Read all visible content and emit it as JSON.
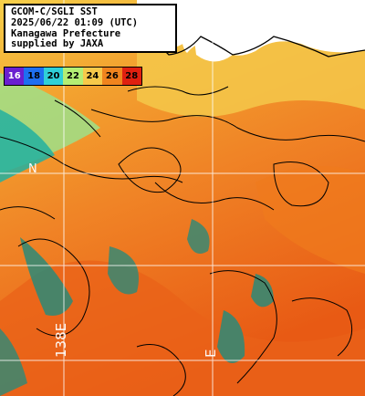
{
  "title": {
    "line1": "GCOM-C/SGLI SST",
    "line2": "2025/06/22 01:09 (UTC)",
    "line3": "Kanagawa Prefecture",
    "line4": "supplied by JAXA"
  },
  "legend": {
    "ticks": [
      "16",
      "18",
      "20",
      "22",
      "24",
      "26",
      "28"
    ],
    "colors": [
      "#6a1fd0",
      "#1e6ff0",
      "#2fd0d8",
      "#b4ee74",
      "#f7c94a",
      "#f0841e",
      "#e02010"
    ]
  },
  "grid": {
    "lat_label": "N",
    "lon_labels": [
      "138E",
      "E"
    ]
  },
  "colors": {
    "land": "#ffffff",
    "sea_warm": "#f07a1c",
    "sea_cool": "#f4c13e",
    "grid": "#ffffff",
    "contour": "#000000"
  }
}
